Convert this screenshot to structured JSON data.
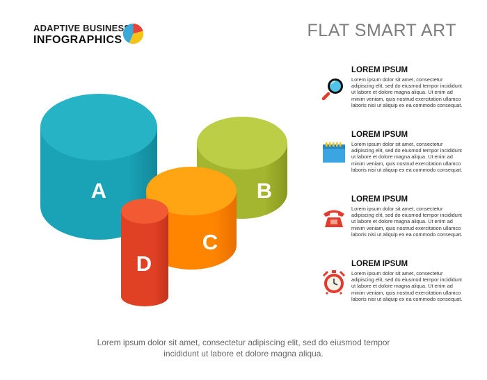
{
  "brand": {
    "line1": "ADAPTIVE BUSINESS",
    "line2": "INFOGRAPHICS",
    "pie_colors": [
      "#e8433a",
      "#3aa9d8",
      "#f5c318"
    ]
  },
  "title": "FLAT SMART ART",
  "cylinders": [
    {
      "label": "A",
      "color": "#1aa3b6",
      "side": "#147f8f",
      "top": "#27b3c6"
    },
    {
      "label": "B",
      "color": "#a6b732",
      "side": "#7d8a1f",
      "top": "#bccd46"
    },
    {
      "label": "C",
      "color": "#ff8a00",
      "side": "#e06a00",
      "top": "#ffa412"
    },
    {
      "label": "D",
      "color": "#e8472a",
      "side": "#c03420",
      "top": "#f25a33"
    }
  ],
  "items": [
    {
      "title": "LOREM IPSUM",
      "icon": "magnifier-icon",
      "body": "Lorem ipsum dolor sit amet, consectetur adipiscing elit, sed do eiusmod tempor incididunt ut labore et dolore magna aliqua. Ut enim ad minim veniam, quis nostrud exercitation ullamco laboris nisi ut aliquip ex ea commodo consequat."
    },
    {
      "title": "LOREM IPSUM",
      "icon": "calendar-icon",
      "body": "Lorem ipsum dolor sit amet, consectetur adipiscing elit, sed do eiusmod tempor incididunt ut labore et dolore magna aliqua. Ut enim ad minim veniam, quis nostrud exercitation ullamco laboris nisi ut aliquip ex ea commodo consequat."
    },
    {
      "title": "LOREM IPSUM",
      "icon": "telephone-icon",
      "body": "Lorem ipsum dolor sit amet, consectetur adipiscing elit, sed do eiusmod tempor incididunt ut labore et dolore magna aliqua. Ut enim ad minim veniam, quis nostrud exercitation ullamco laboris nisi ut aliquip ex ea commodo consequat."
    },
    {
      "title": "LOREM IPSUM",
      "icon": "alarm-clock-icon",
      "body": "Lorem ipsum dolor sit amet, consectetur adipiscing elit, sed do eiusmod tempor incididunt ut labore et dolore magna aliqua. Ut enim ad minim veniam, quis nostrud exercitation ullamco laboris nisi ut aliquip ex ea commodo consequat."
    }
  ],
  "footer": {
    "line1": "Lorem ipsum dolor sit amet, consectetur adipiscing elit, sed do eiusmod tempor",
    "line2": "incididunt ut labore et dolore magna aliqua."
  }
}
